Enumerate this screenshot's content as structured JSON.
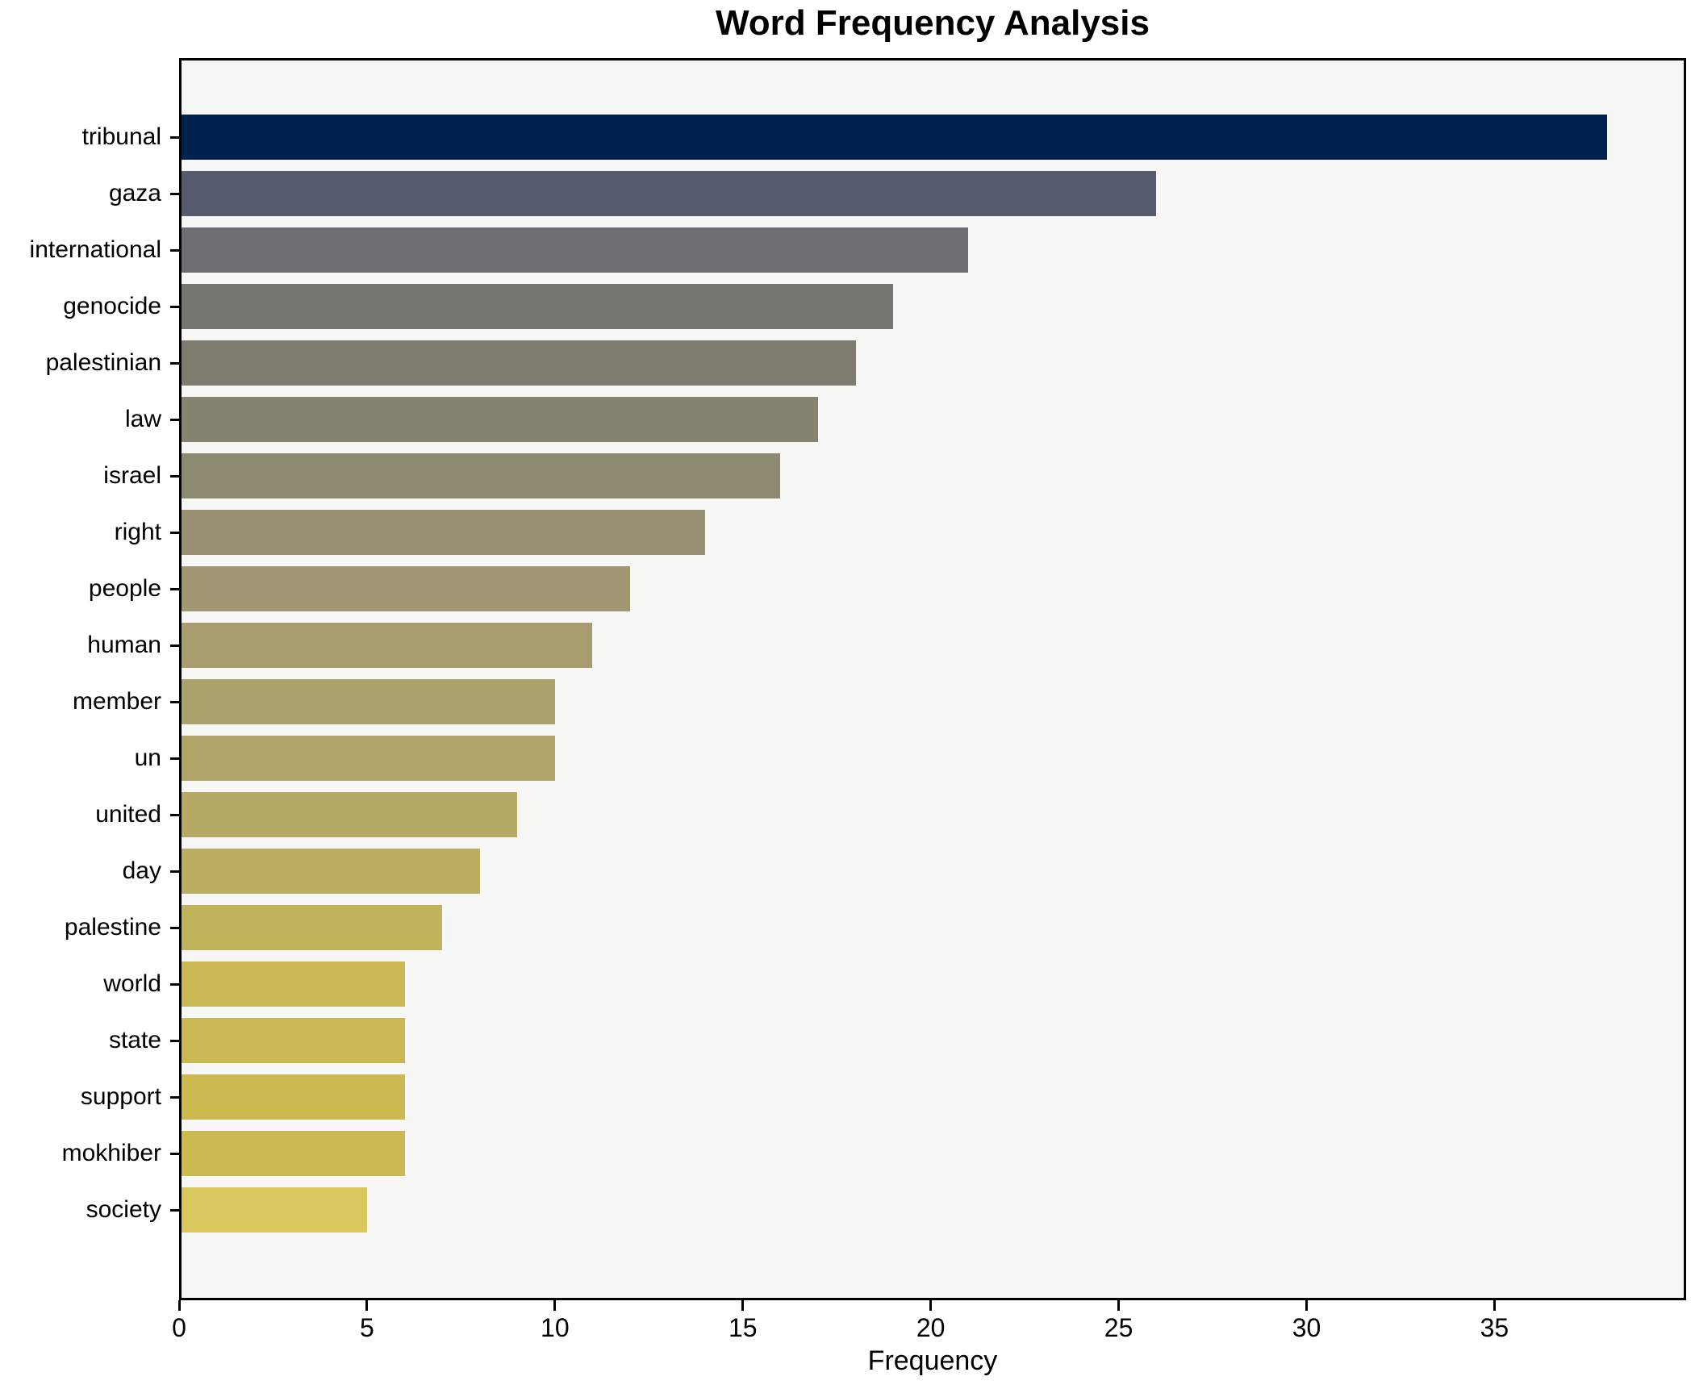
{
  "chart_data": {
    "type": "bar",
    "orientation": "horizontal",
    "title": "Word Frequency Analysis",
    "xlabel": "Frequency",
    "ylabel": "",
    "categories": [
      "tribunal",
      "gaza",
      "international",
      "genocide",
      "palestinian",
      "law",
      "israel",
      "right",
      "people",
      "human",
      "member",
      "un",
      "united",
      "day",
      "palestine",
      "world",
      "state",
      "support",
      "mokhiber",
      "society"
    ],
    "values": [
      38,
      26,
      21,
      19,
      18,
      17,
      16,
      14,
      12,
      11,
      10,
      10,
      9,
      8,
      7,
      6,
      6,
      6,
      6,
      5
    ],
    "bar_colors": [
      "#00224e",
      "#565c6e",
      "#6c6e71",
      "#767670",
      "#7e7c6f",
      "#868370",
      "#8e8971",
      "#979071",
      "#a09872",
      "#a79d6e",
      "#aba16b",
      "#b0a569",
      "#b5a965",
      "#bbae60",
      "#c1b35b",
      "#c9b853",
      "#c9b853",
      "#ccba50",
      "#ccba50",
      "#d9c65c"
    ],
    "xlim": [
      0,
      40.1
    ],
    "xticks": [
      0,
      5,
      10,
      15,
      20,
      25,
      30,
      35
    ],
    "grid": false,
    "legend": null,
    "plot_bg": "#f7f7f6",
    "spine_color": "#000000",
    "colormap": "cividis"
  }
}
